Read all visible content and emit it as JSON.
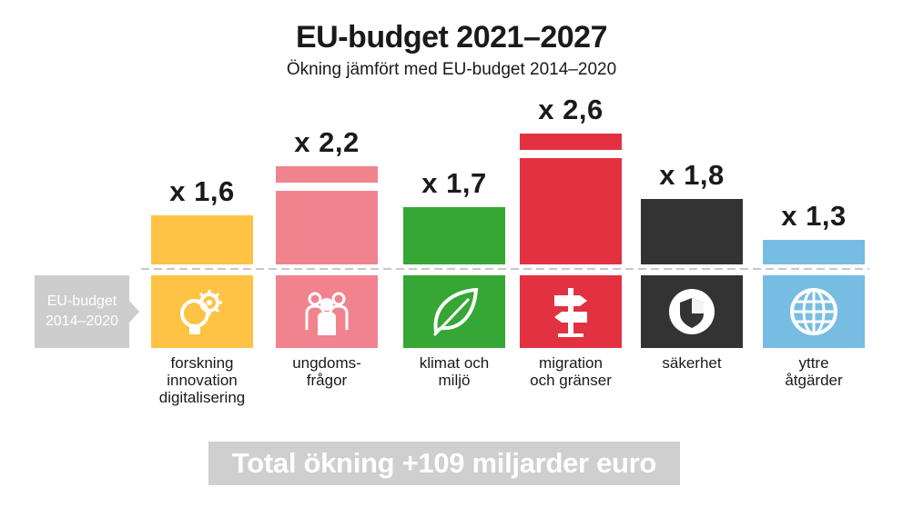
{
  "title": "EU-budget 2021–2027",
  "subtitle": "Ökning jämfört med EU-budget 2014–2020",
  "reference_label": {
    "line1": "EU-budget",
    "line2": "2014–2020"
  },
  "footer": "Total ökning +109 miljarder euro",
  "colors": {
    "forskning": "#fec344",
    "ungdom": "#f1838f",
    "klimat": "#36a635",
    "migration": "#e23242",
    "sakerhet": "#333333",
    "yttre": "#77bde3",
    "baseline": "#c8c8c8"
  },
  "chart_data": {
    "type": "bar",
    "title": "EU-budget 2021–2027",
    "subtitle": "Ökning jämfört med EU-budget 2014–2020",
    "categories": [
      "forskning\ninnovation\ndigitalisering",
      "ungdoms-\nfrågor",
      "klimat och\nmiljö",
      "migration\noch gränser",
      "säkerhet",
      "yttre\nåtgärder"
    ],
    "values": [
      1.6,
      2.2,
      1.7,
      2.6,
      1.8,
      1.3
    ],
    "value_labels": [
      "x 1,6",
      "x 2,2",
      "x 1,7",
      "x 2,6",
      "x 1,8",
      "x 1,3"
    ],
    "baseline_value": 1.0,
    "icons": [
      "gears-bulb-icon",
      "people-group-icon",
      "leaf-icon",
      "signpost-icon",
      "shield-icon",
      "globe-icon"
    ],
    "grid": false
  }
}
